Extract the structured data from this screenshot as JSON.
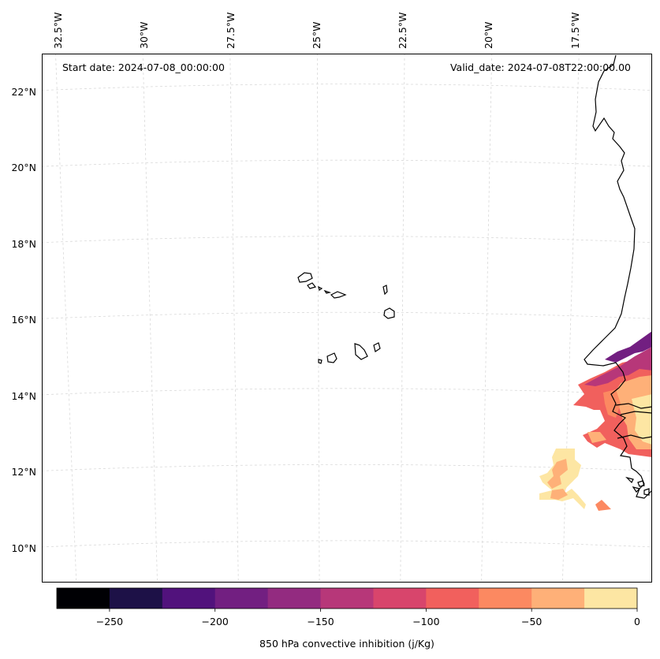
{
  "map": {
    "start_label": "Start date: 2024-07-08_00:00:00",
    "valid_label": "Valid_date: 2024-07-08T22:00:00.00",
    "extent": {
      "lon_west": -33.0,
      "lon_east": -15.3,
      "lat_south": 8.9,
      "lat_north": 22.8
    },
    "latitude_ticks": [
      {
        "value": 22,
        "label": "22°N"
      },
      {
        "value": 20,
        "label": "20°N"
      },
      {
        "value": 18,
        "label": "18°N"
      },
      {
        "value": 16,
        "label": "16°N"
      },
      {
        "value": 14,
        "label": "14°N"
      },
      {
        "value": 12,
        "label": "12°N"
      },
      {
        "value": 10,
        "label": "10°N"
      }
    ],
    "longitude_ticks": [
      {
        "value": -32.5,
        "label": "32.5°W"
      },
      {
        "value": -30.0,
        "label": "30°W"
      },
      {
        "value": -27.5,
        "label": "27.5°W"
      },
      {
        "value": -25.0,
        "label": "25°W"
      },
      {
        "value": -22.5,
        "label": "22.5°W"
      },
      {
        "value": -20.0,
        "label": "20°W"
      },
      {
        "value": -17.5,
        "label": "17.5°W"
      }
    ],
    "features": [
      "Cabo Verde islands",
      "West African coastline (Mauritania, Senegal, Gambia, Guinea-Bissau)"
    ]
  },
  "chart_data": {
    "type": "filled-contour-map",
    "variable": "850 hPa convective inhibition",
    "units": "j/Kg",
    "levels": [
      -275,
      -250,
      -225,
      -200,
      -175,
      -150,
      -125,
      -100,
      -75,
      -50,
      -25,
      0
    ],
    "colors": [
      "#000004",
      "#1d1147",
      "#51127c",
      "#721f81",
      "#932b80",
      "#b73779",
      "#d8456c",
      "#f1605d",
      "#fc8961",
      "#feb078",
      "#fde6a3"
    ],
    "regions": [
      {
        "area": "Senegal coast near Dakar",
        "lon_range": [
          -17.5,
          -15.3
        ],
        "lat_range": [
          13.3,
          15.3
        ],
        "cin_range": [
          -200,
          -100
        ]
      },
      {
        "area": "Interior Senegal / Gambia",
        "lon_range": [
          -16.5,
          -15.3
        ],
        "lat_range": [
          12.5,
          14.2
        ],
        "cin_range": [
          -100,
          0
        ]
      },
      {
        "area": "Offshore Guinea-Bissau",
        "lon_range": [
          -19.2,
          -17.9
        ],
        "lat_range": [
          11.0,
          12.3
        ],
        "cin_range": [
          -75,
          0
        ]
      },
      {
        "area": "Offshore patch near 17.5W 11N",
        "lon_range": [
          -17.6,
          -17.2
        ],
        "lat_range": [
          10.8,
          11.1
        ],
        "cin_range": [
          -75,
          -25
        ]
      }
    ]
  },
  "colorbar": {
    "label": "850 hPa convective inhibition (j/Kg)",
    "ticks": [
      {
        "value": -250,
        "label": "−250"
      },
      {
        "value": -200,
        "label": "−200"
      },
      {
        "value": -150,
        "label": "−150"
      },
      {
        "value": -100,
        "label": "−100"
      },
      {
        "value": -50,
        "label": "−50"
      },
      {
        "value": 0,
        "label": "0"
      }
    ]
  }
}
